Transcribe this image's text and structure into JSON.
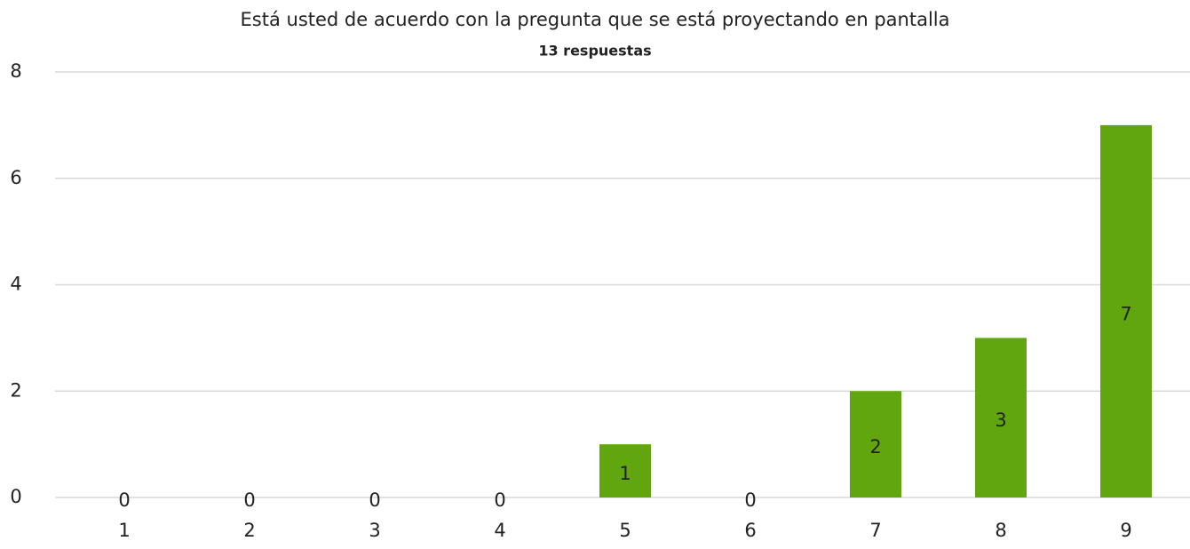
{
  "chart_data": {
    "type": "bar",
    "title": "Está usted de acuerdo con la pregunta que se está proyectando en pantalla",
    "subtitle": "13 respuestas",
    "categories": [
      "1",
      "2",
      "3",
      "4",
      "5",
      "6",
      "7",
      "8",
      "9"
    ],
    "values": [
      0,
      0,
      0,
      0,
      1,
      0,
      2,
      3,
      7
    ],
    "color": "#62a60f",
    "ylim": [
      0,
      8
    ],
    "yticks": [
      0,
      2,
      4,
      6,
      8
    ],
    "grid": true
  }
}
